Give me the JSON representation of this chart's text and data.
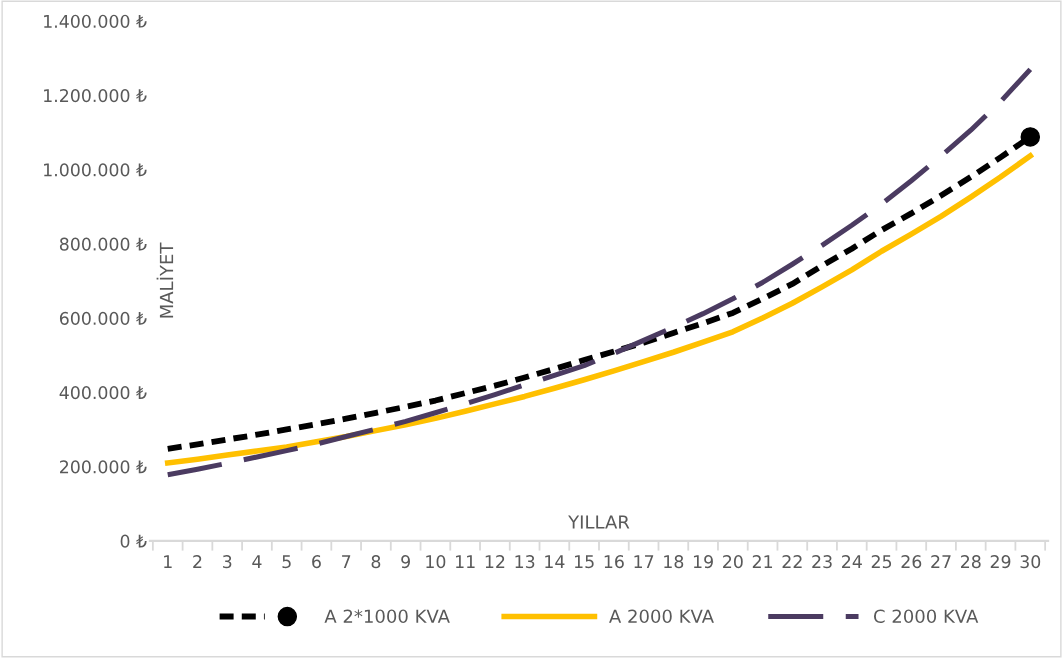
{
  "chart_data": {
    "type": "line",
    "xlabel": "YILLAR",
    "ylabel": "MALİYET",
    "categories": [
      "1",
      "2",
      "3",
      "4",
      "5",
      "6",
      "7",
      "8",
      "9",
      "10",
      "11",
      "12",
      "13",
      "14",
      "15",
      "16",
      "17",
      "18",
      "19",
      "20",
      "21",
      "22",
      "23",
      "24",
      "25",
      "26",
      "27",
      "28",
      "29",
      "30"
    ],
    "series": [
      {
        "name": "A 2*1000 KVA",
        "color": "#000000",
        "line_style": "dotted",
        "values": [
          248000,
          260000,
          273000,
          286000,
          300000,
          314000,
          329000,
          345000,
          361000,
          378000,
          398000,
          418000,
          440000,
          463000,
          487000,
          510000,
          534000,
          560000,
          586000,
          614000,
          652000,
          692000,
          741000,
          787000,
          837000,
          882000,
          930000,
          980000,
          1033000,
          1088000
        ]
      },
      {
        "type": "scatter",
        "color": "#000000",
        "marker": "circle",
        "values": [
          null,
          null,
          null,
          null,
          null,
          null,
          null,
          null,
          null,
          null,
          null,
          null,
          null,
          null,
          null,
          null,
          null,
          null,
          null,
          null,
          null,
          null,
          null,
          null,
          null,
          null,
          null,
          null,
          null,
          1088000
        ]
      },
      {
        "name": "A 2000 KVA",
        "color": "#ffc000",
        "line_style": "solid",
        "values": [
          210000,
          220000,
          231000,
          242000,
          253000,
          267000,
          281000,
          297000,
          313000,
          330000,
          349000,
          369000,
          389000,
          411000,
          434000,
          458000,
          483000,
          508000,
          535000,
          563000,
          600000,
          640000,
          684000,
          730000,
          780000,
          826000,
          874000,
          926000,
          980000,
          1037000
        ]
      },
      {
        "name": "C 2000 KVA",
        "color": "#4b3b61",
        "line_style": "dashed",
        "values": [
          178000,
          193000,
          209000,
          226000,
          243000,
          261000,
          281000,
          301000,
          322000,
          345000,
          369000,
          394000,
          420000,
          446000,
          472000,
          505000,
          540000,
          575000,
          612000,
          652000,
          696000,
          745000,
          796000,
          850000,
          907000,
          970000,
          1036000,
          1106000,
          1183000,
          1270000
        ]
      }
    ],
    "ylim": [
      0,
      1400000
    ],
    "yticks": [
      {
        "value": 0,
        "label": "0 ₺"
      },
      {
        "value": 200000,
        "label": "200.000 ₺"
      },
      {
        "value": 400000,
        "label": "400.000 ₺"
      },
      {
        "value": 600000,
        "label": "600.000 ₺"
      },
      {
        "value": 800000,
        "label": "800.000 ₺"
      },
      {
        "value": 1000000,
        "label": "1.000.000 ₺"
      },
      {
        "value": 1200000,
        "label": "1.200.000 ₺"
      },
      {
        "value": 1400000,
        "label": "1.400.000 ₺"
      }
    ],
    "legend": "bottom",
    "grid": false
  }
}
